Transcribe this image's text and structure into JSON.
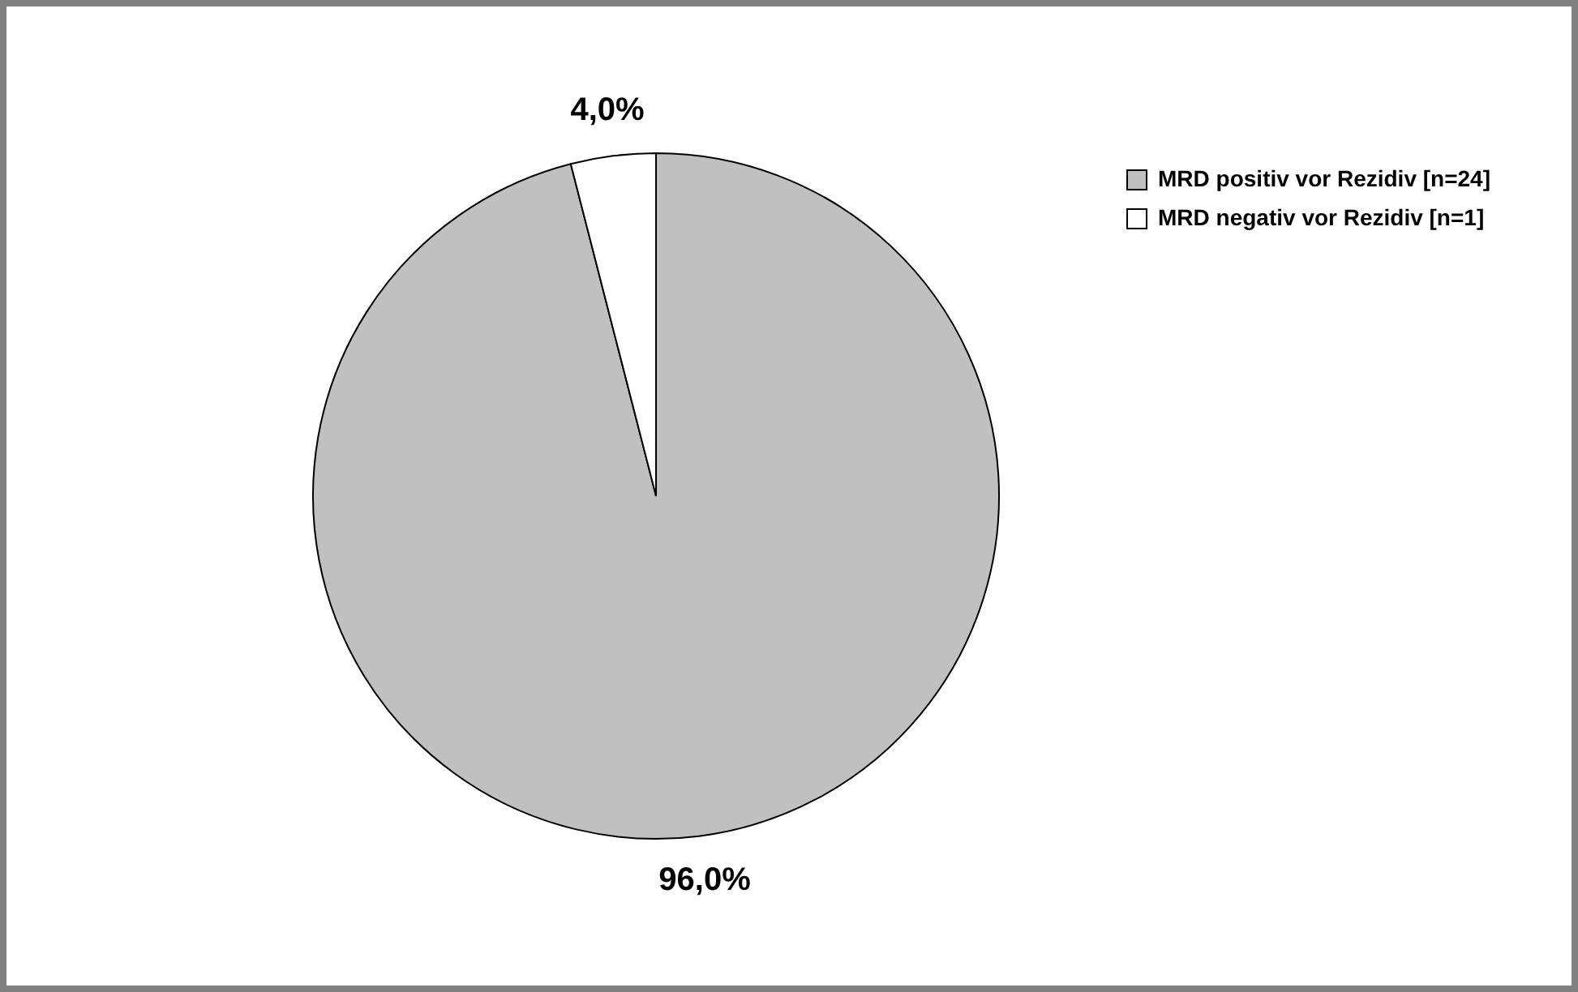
{
  "chart_data": {
    "type": "pie",
    "categories": [
      "MRD positiv vor Rezidiv [n=24]",
      "MRD negativ vor Rezidiv [n=1]"
    ],
    "values": [
      96.0,
      4.0
    ],
    "colors": [
      "#c0c0c0",
      "#ffffff"
    ],
    "value_labels": [
      "96,0%",
      "4,0%"
    ],
    "legend": "top right"
  }
}
